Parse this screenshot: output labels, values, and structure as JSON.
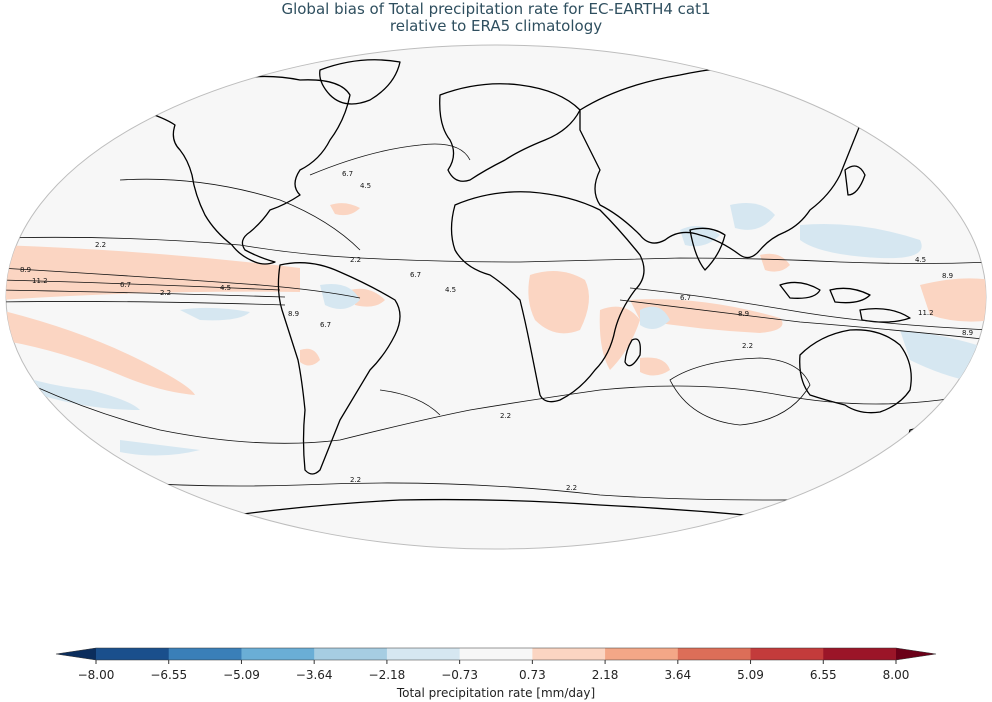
{
  "title": {
    "line1": "Global bias of Total precipitation rate for EC-EARTH4 cat1",
    "line2": "relative to ERA5 climatology"
  },
  "colorbar": {
    "label": "Total precipitation rate [mm/day]",
    "ticks": [
      "−8.00",
      "−6.55",
      "−5.09",
      "−3.64",
      "−2.18",
      "−0.73",
      "0.73",
      "2.18",
      "3.64",
      "5.09",
      "6.55",
      "8.00"
    ],
    "colors": [
      "#1a4f8c",
      "#3a7fb8",
      "#6aaed6",
      "#a6cde2",
      "#d6e7f1",
      "#f7f7f7",
      "#fbd5c2",
      "#f3a787",
      "#dc6e58",
      "#c33b3b",
      "#9b1528"
    ],
    "under_color": "#0b2d5c",
    "over_color": "#6b0018"
  },
  "contour_labels": [
    "2.2",
    "4.5",
    "6.7",
    "8.9",
    "11.2"
  ],
  "colors": {
    "title": "#2f4f5f",
    "ocean_bg": "#f7f7f7",
    "positive_bias": "#fbd5c2",
    "negative_bias": "#d6e7f1",
    "coast": "#000000"
  }
}
